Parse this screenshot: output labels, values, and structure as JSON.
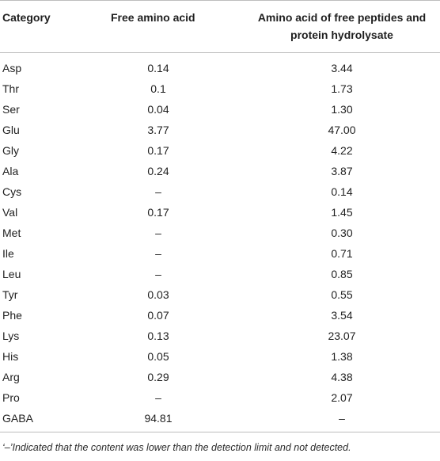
{
  "table": {
    "headers": {
      "category": "Category",
      "free": "Free amino acid",
      "peptides": "Amino acid of free peptides and protein hydrolysate"
    },
    "rows": [
      {
        "category": "Asp",
        "free": "0.14",
        "peptides": "3.44"
      },
      {
        "category": "Thr",
        "free": "0.1",
        "peptides": "1.73"
      },
      {
        "category": "Ser",
        "free": "0.04",
        "peptides": "1.30"
      },
      {
        "category": "Glu",
        "free": "3.77",
        "peptides": "47.00"
      },
      {
        "category": "Gly",
        "free": "0.17",
        "peptides": "4.22"
      },
      {
        "category": "Ala",
        "free": "0.24",
        "peptides": "3.87"
      },
      {
        "category": "Cys",
        "free": "–",
        "peptides": "0.14"
      },
      {
        "category": "Val",
        "free": "0.17",
        "peptides": "1.45"
      },
      {
        "category": "Met",
        "free": "–",
        "peptides": "0.30"
      },
      {
        "category": "Ile",
        "free": "–",
        "peptides": "0.71"
      },
      {
        "category": "Leu",
        "free": "–",
        "peptides": "0.85"
      },
      {
        "category": "Tyr",
        "free": "0.03",
        "peptides": "0.55"
      },
      {
        "category": "Phe",
        "free": "0.07",
        "peptides": "3.54"
      },
      {
        "category": "Lys",
        "free": "0.13",
        "peptides": "23.07"
      },
      {
        "category": "His",
        "free": "0.05",
        "peptides": "1.38"
      },
      {
        "category": "Arg",
        "free": "0.29",
        "peptides": "4.38"
      },
      {
        "category": "Pro",
        "free": "–",
        "peptides": "2.07"
      },
      {
        "category": "GABA",
        "free": "94.81",
        "peptides": "–"
      }
    ]
  },
  "footnote": "‘–’Indicated that the content was lower than the detection limit and not detected."
}
